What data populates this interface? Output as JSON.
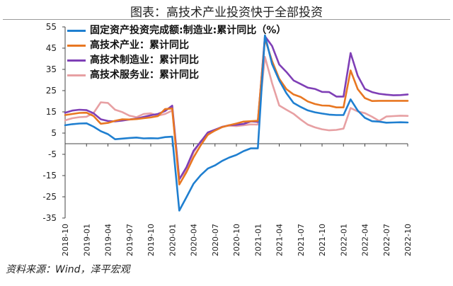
{
  "title": "图表：高技术产业投资快于全部投资",
  "source": "资料来源：Wind，泽平宏观",
  "chart_data": {
    "type": "line",
    "xlabel": "",
    "ylabel": "",
    "ylim": [
      -35,
      55
    ],
    "yticks": [
      55,
      45,
      35,
      25,
      15,
      5,
      -5,
      -15,
      -25,
      -35
    ],
    "xticks": [
      "2018-10",
      "2019-01",
      "2019-04",
      "2019-07",
      "2019-10",
      "2020-01",
      "2020-04",
      "2020-07",
      "2020-10",
      "2021-01",
      "2021-04",
      "2021-07",
      "2021-10",
      "2022-01",
      "2022-04",
      "2022-07",
      "2022-10"
    ],
    "grid": false,
    "legend": "top-left",
    "x": [
      "2018-10",
      "2018-11",
      "2018-12",
      "2019-01",
      "2019-02",
      "2019-03",
      "2019-04",
      "2019-05",
      "2019-06",
      "2019-07",
      "2019-08",
      "2019-09",
      "2019-10",
      "2019-11",
      "2019-12",
      "2020-01",
      "2020-02",
      "2020-03",
      "2020-04",
      "2020-05",
      "2020-06",
      "2020-07",
      "2020-08",
      "2020-09",
      "2020-10",
      "2020-11",
      "2020-12",
      "2021-01",
      "2021-02",
      "2021-03",
      "2021-04",
      "2021-05",
      "2021-06",
      "2021-07",
      "2021-08",
      "2021-09",
      "2021-10",
      "2021-11",
      "2021-12",
      "2022-01",
      "2022-02",
      "2022-03",
      "2022-04",
      "2022-05",
      "2022-06",
      "2022-07",
      "2022-08",
      "2022-09",
      "2022-10"
    ],
    "series": [
      {
        "name": "固定资产投资完成额:制造业:累计同比（%）",
        "color": "#1f7fd0",
        "values": [
          8.7,
          9.2,
          9.5,
          9.6,
          8.0,
          5.9,
          4.5,
          2.1,
          2.4,
          2.7,
          2.9,
          2.5,
          2.6,
          2.5,
          3.1,
          3.3,
          -31.5,
          -25.2,
          -18.8,
          -14.8,
          -11.7,
          -10.2,
          -8.1,
          -6.5,
          -5.3,
          -3.5,
          -2.2,
          -2.2,
          51.0,
          37.5,
          29.8,
          23.8,
          19.2,
          17.3,
          15.7,
          14.8,
          14.2,
          13.7,
          13.5,
          13.5,
          20.9,
          15.6,
          12.2,
          10.6,
          10.4,
          9.9,
          10.0,
          10.1,
          10.0
        ]
      },
      {
        "name": "高技术产业：累计同比",
        "color": "#e87722",
        "values": [
          13.5,
          14.0,
          14.5,
          14.6,
          13.0,
          9.4,
          9.8,
          10.8,
          11.5,
          11.4,
          11.6,
          12.0,
          12.4,
          13.0,
          16.3,
          16.6,
          -19.2,
          -13.4,
          -6.4,
          -0.7,
          4.3,
          6.2,
          7.8,
          8.7,
          9.5,
          10.4,
          10.6,
          10.8,
          49.5,
          38.9,
          30.6,
          25.7,
          23.2,
          22.0,
          19.9,
          18.7,
          18.0,
          17.9,
          17.1,
          17.1,
          34.5,
          25.7,
          21.5,
          20.1,
          20.2,
          20.2,
          20.2,
          20.2,
          20.2
        ]
      },
      {
        "name": "高技术制造业：累计同比",
        "color": "#7f3fb6",
        "values": [
          14.6,
          15.6,
          16.0,
          15.8,
          14.3,
          11.5,
          10.7,
          10.5,
          10.9,
          11.4,
          11.8,
          12.6,
          13.4,
          14.0,
          15.4,
          17.9,
          -16.8,
          -11.1,
          -3.3,
          0.9,
          5.3,
          6.6,
          7.9,
          8.7,
          8.9,
          9.3,
          10.5,
          10.3,
          50.6,
          46.0,
          37.3,
          33.8,
          29.8,
          28.1,
          26.4,
          25.8,
          24.4,
          24.3,
          22.2,
          22.2,
          42.7,
          32.0,
          25.8,
          24.3,
          23.5,
          23.1,
          22.8,
          22.9,
          23.2
        ]
      },
      {
        "name": "高技术服务业：累计同比",
        "color": "#e7a0a3",
        "values": [
          11.0,
          12.0,
          12.5,
          12.7,
          14.5,
          19.5,
          19.2,
          16.0,
          14.9,
          13.2,
          12.5,
          14.0,
          14.3,
          13.2,
          14.0,
          15.6,
          -16.7,
          -12.3,
          -4.1,
          1.2,
          4.1,
          6.4,
          8.0,
          8.5,
          8.3,
          8.7,
          9.1,
          9.0,
          40.9,
          28.5,
          18.0,
          16.0,
          14.1,
          11.4,
          9.0,
          7.7,
          6.8,
          6.3,
          6.5,
          7.1,
          16.8,
          15.2,
          14.4,
          12.7,
          10.7,
          12.8,
          13.0,
          13.2,
          13.1
        ]
      }
    ]
  }
}
